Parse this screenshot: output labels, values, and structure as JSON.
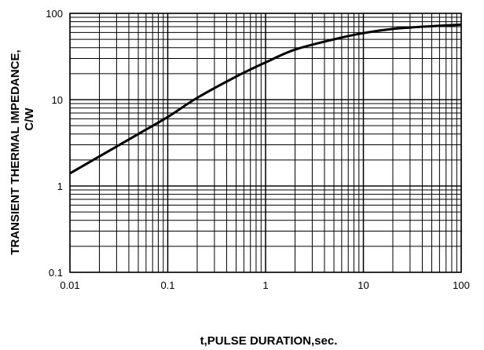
{
  "chart_data": {
    "type": "line",
    "title": "",
    "xlabel": "t,PULSE DURATION,sec.",
    "ylabel_lines": [
      "TRANSIENT THERMAL IMPEDANCE,",
      "C/W"
    ],
    "x_scale": "log",
    "y_scale": "log",
    "xlim": [
      0.01,
      100
    ],
    "ylim": [
      0.1,
      100
    ],
    "x_ticks": [
      0.01,
      0.1,
      1,
      10,
      100
    ],
    "x_tick_labels": [
      "0.01",
      "0.1",
      "1",
      "10",
      "100"
    ],
    "y_ticks": [
      0.1,
      1,
      10,
      100
    ],
    "y_tick_labels": [
      "0.1",
      "1",
      "10",
      "100"
    ],
    "grid": true,
    "series": [
      {
        "x": [
          0.01,
          0.02,
          0.05,
          0.1,
          0.2,
          0.5,
          1,
          2,
          5,
          10,
          20,
          50,
          100
        ],
        "y": [
          1.4,
          2.2,
          4.0,
          6.3,
          10.5,
          18.5,
          27,
          38,
          50,
          59,
          66,
          71,
          74
        ]
      }
    ]
  }
}
